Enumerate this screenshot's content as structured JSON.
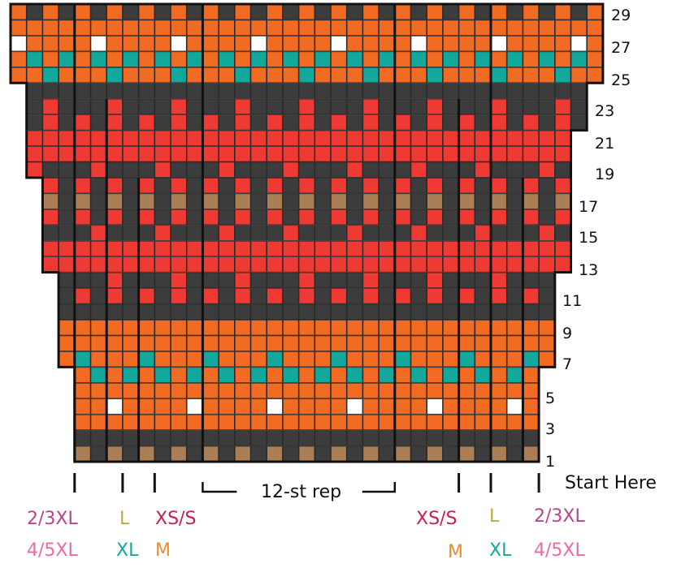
{
  "colors": {
    "O": "#f26b22",
    "D": "#3c3c3c",
    "R": "#ee3a32",
    "T": "#12a89c",
    "W": "#ffffff",
    "B": "#ab7f55"
  },
  "color_names": {
    "O": "orange",
    "D": "charcoal",
    "R": "red",
    "T": "teal",
    "W": "white",
    "B": "tan"
  },
  "row_numbers": [
    "29",
    "27",
    "25",
    "23",
    "21",
    "19",
    "17",
    "15",
    "13",
    "11",
    "9",
    "7",
    "5",
    "3",
    "1"
  ],
  "rows": [
    "ODODODODODODODODODODODODODODODODODODO",
    "OOOOOOOOOOOOOOOOOOOOOOOOOOOOOOOOOOOOO",
    "WOOOOWOOOOWOOOOWOOOOWOOOOWOOOOWOOOOWO",
    "OTOTOTOTOTOTOTOTOTOTOTOTOTOTOTOTOTOTO",
    "OOTOOOTOOOTOOOTOOOTOOOTOOOTOOOTOOOTOO",
    "DDDDDDDDDDDDDDDDDDDDDDDDDDDDDDDDDDDDD",
    "DDRDDDRDDDRDDDRDDDRDDDRDDDRDDDRDDDRDD",
    "RDRDRDRDRDRDRDRDRDRDRDRDRDRDRDRDRDRDR",
    "RRRRRRRRRRRRRRRRRRRRRRRRRRRRRRRRRRRRR",
    "RRRRRRRRRRRRRRRRRRRRRRRRRRRRRRRRRRRRR",
    "DRDDDRDDDRDDDRDDDRDDDRDDDRDDDRDDDRDDD",
    "RDRDRDRDRDRDRDRDRDRDRDRDRDRDRDRDRDRDR",
    "BDBDBDBDBDBDBDBDBDBDBDBDBDBDBDBDBDBDB",
    "RDRDRDRDRDRDRDRDRDRDRDRDRDRDRDRDRDRDR",
    "DRDDDRDDDRDDDRDDDRDDDRDDDRDDDRDDDRDDD",
    "RRRRRRRRRRRRRRRRRRRRRRRRRRRRRRRRRRRRR",
    "RRRRRRRRRRRRRRRRRRRRRRRRRRRRRRRRRRRRR",
    "DDRDDDRDDDRDDDRDDDRDDDRDDDRDDDRDDDRDD",
    "RDRDRDRDRDRDRDRDRDRDRDRDRDRDRDRDRDRDR",
    "DDDDDDDDDDDDDDDDDDDDDDDDDDDDDDDDDDDDD",
    "OOOOOOOOOOOOOOOOOOOOOOOOOOOOOOOOOOOOO",
    "OOOOOOOOOOOOOOOOOOOOOOOOOOOOOOOOOOOOO",
    "TOOOTOOOTOOOTOOOTOOOTOOOTOOOTOOOTOOOT",
    "OTOTOTOTOTOTOTOTOTOTOTOTOTOTOTOTOTOTO",
    "OOOOOOOOOOOOOOOOOOOOOOOOOOOOOOOOOOOOO",
    "OWOOOOWOOOOWOOOOWOOOOWOOOOWOOOOWOOOOW",
    "OOOOOOOOOOOOOOOOOOOOOOOOOOOOOOOOOOOOO",
    "DDDDDDDDDDDDDDDDDDDDDDDDDDDDDDDDDDDDD",
    "BDBDBDBDBDBDBDBDBDBDBDBDBDBDBDBDBDBDB"
  ],
  "row_span": [
    [
      0,
      37
    ],
    [
      0,
      37
    ],
    [
      0,
      37
    ],
    [
      0,
      37
    ],
    [
      0,
      37
    ],
    [
      1,
      36
    ],
    [
      1,
      36
    ],
    [
      1,
      36
    ],
    [
      1,
      35
    ],
    [
      1,
      35
    ],
    [
      1,
      35
    ],
    [
      2,
      35
    ],
    [
      2,
      35
    ],
    [
      2,
      35
    ],
    [
      2,
      35
    ],
    [
      2,
      35
    ],
    [
      2,
      35
    ],
    [
      3,
      34
    ],
    [
      3,
      34
    ],
    [
      3,
      34
    ],
    [
      3,
      34
    ],
    [
      3,
      34
    ],
    [
      3,
      34
    ],
    [
      4,
      33
    ],
    [
      4,
      33
    ],
    [
      4,
      33
    ],
    [
      4,
      33
    ],
    [
      4,
      33
    ],
    [
      4,
      33
    ]
  ],
  "labels": {
    "rep": "12-st rep",
    "start": "Start Here",
    "left": {
      "l_23xl": "2/3XL",
      "l_45xl": "4/5XL",
      "l_l": "L",
      "l_xl": "XL",
      "l_xss": "XS/S",
      "l_m": "M"
    },
    "right": {
      "r_xss": "XS/S",
      "r_m": "M",
      "r_l": "L",
      "r_xl": "XL",
      "r_23xl": "2/3XL",
      "r_45xl": "4/5XL"
    }
  },
  "label_colors": {
    "23xl": "#b9438d",
    "45xl": "#ef6aa6",
    "l": "#b9ad3c",
    "xl": "#12a89c",
    "xss": "#c81d56",
    "m": "#f28a2c"
  }
}
